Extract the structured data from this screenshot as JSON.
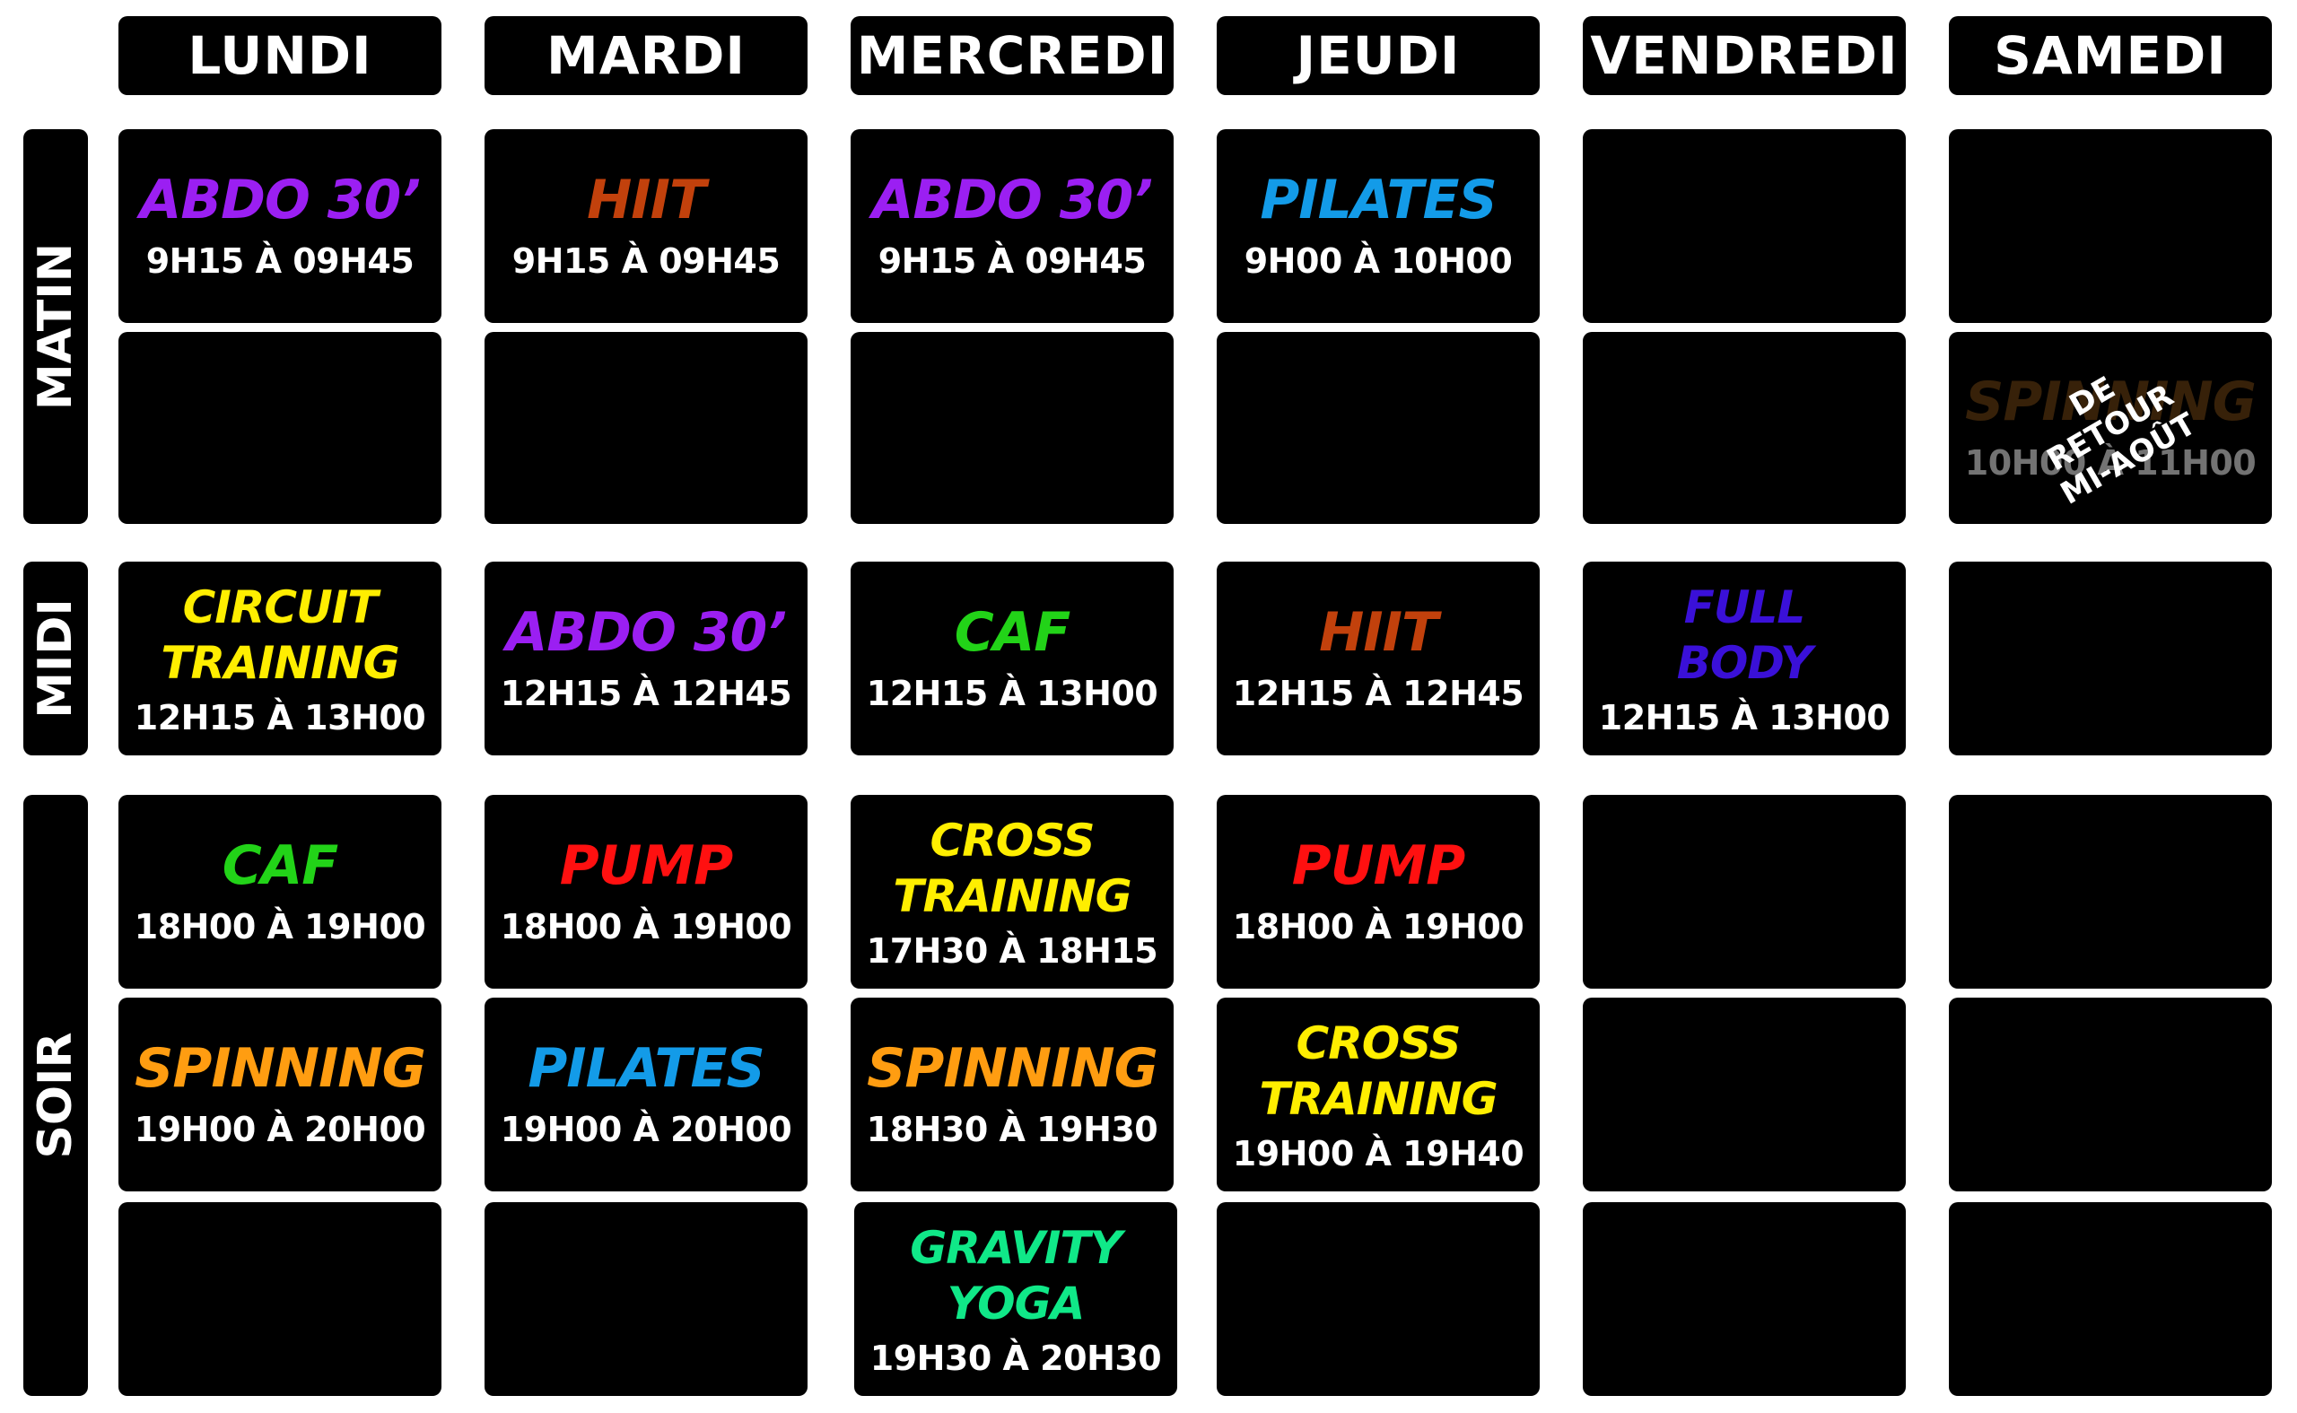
{
  "days": [
    "LUNDI",
    "MARDI",
    "MERCREDI",
    "JEUDI",
    "VENDREDI",
    "SAMEDI"
  ],
  "periods": {
    "matin": "MATIN",
    "midi": "MIDI",
    "soir": "SOIR"
  },
  "colors": {
    "purple": "#9b1ff2",
    "brown": "#c2410c",
    "blue": "#139be8",
    "yellow": "#ffee00",
    "green": "#22d318",
    "indigo": "#3a10d8",
    "red": "#ff1010",
    "orange": "#ff9d11",
    "teal": "#10e888",
    "dimbrown": "#7a4a14"
  },
  "schedule": {
    "lundi": {
      "matin1": {
        "name": "ABDO 30’",
        "time": "9H15 À 09H45",
        "color": "purple"
      },
      "midi": {
        "name": "CIRCUIT\nTRAINING",
        "time": "12H15 À 13H00",
        "color": "yellow"
      },
      "soir1": {
        "name": "CAF",
        "time": "18H00 À 19H00",
        "color": "green"
      },
      "soir2": {
        "name": "SPINNING",
        "time": "19H00 À 20H00",
        "color": "orange"
      }
    },
    "mardi": {
      "matin1": {
        "name": "HIIT",
        "time": "9H15 À 09H45",
        "color": "brown"
      },
      "midi": {
        "name": "ABDO 30’",
        "time": "12H15 À 12H45",
        "color": "purple"
      },
      "soir1": {
        "name": "PUMP",
        "time": "18H00 À 19H00",
        "color": "red"
      },
      "soir2": {
        "name": "PILATES",
        "time": "19H00 À 20H00",
        "color": "blue"
      }
    },
    "mercredi": {
      "matin1": {
        "name": "ABDO 30’",
        "time": "9H15 À 09H45",
        "color": "purple"
      },
      "midi": {
        "name": "CAF",
        "time": "12H15 À 13H00",
        "color": "green"
      },
      "soir1": {
        "name": "CROSS\nTRAINING",
        "time": "17H30 À 18H15",
        "color": "yellow"
      },
      "soir2": {
        "name": "SPINNING",
        "time": "18H30 À 19H30",
        "color": "orange"
      },
      "soir3": {
        "name": "GRAVITY\nYOGA",
        "time": "19H30 À 20H30",
        "color": "teal"
      }
    },
    "jeudi": {
      "matin1": {
        "name": "PILATES",
        "time": "9H00 À 10H00",
        "color": "blue"
      },
      "midi": {
        "name": "HIIT",
        "time": "12H15 À 12H45",
        "color": "brown"
      },
      "soir1": {
        "name": "PUMP",
        "time": "18H00 À 19H00",
        "color": "red"
      },
      "soir2": {
        "name": "CROSS\nTRAINING",
        "time": "19H00 À 19H40",
        "color": "yellow"
      }
    },
    "vendredi": {
      "midi": {
        "name": "FULL\nBODY",
        "time": "12H15 À 13H00",
        "color": "indigo"
      }
    },
    "samedi": {
      "matin2": {
        "name": "SPINNING",
        "time": "10H00 À 11H00",
        "color": "dimbrown",
        "overlay": "DE RETOUR\nMI-AOÛT"
      }
    }
  }
}
